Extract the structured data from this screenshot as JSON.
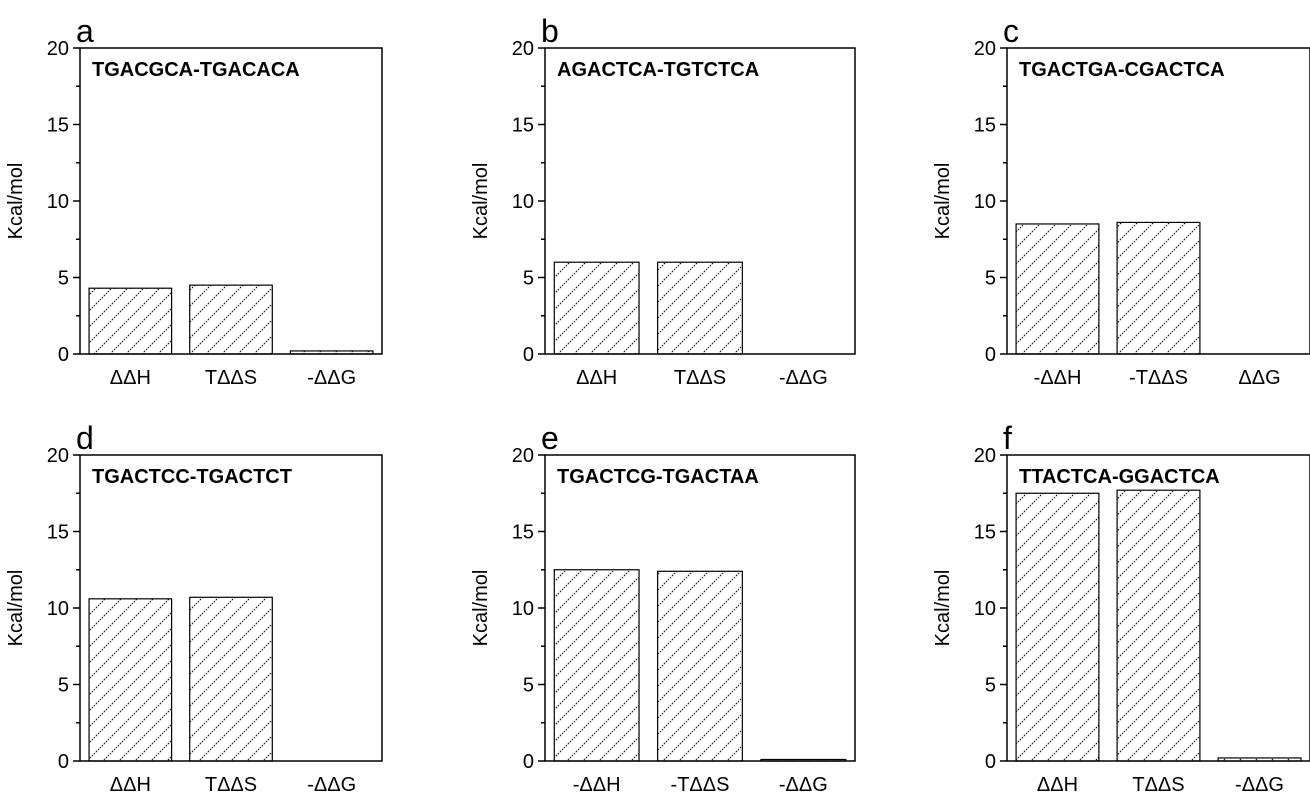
{
  "chart_data": [
    {
      "type": "bar",
      "panel": "a",
      "title": "TGACGCA-TGACACA",
      "ylabel": "Kcal/mol",
      "ylim": [
        0,
        20
      ],
      "yticks": [
        0,
        5,
        10,
        15,
        20
      ],
      "categories": [
        "ΔΔH",
        "TΔΔS",
        "-ΔΔG"
      ],
      "values": [
        4.3,
        4.5,
        0.2
      ]
    },
    {
      "type": "bar",
      "panel": "b",
      "title": "AGACTCA-TGTCTCA",
      "ylabel": "Kcal/mol",
      "ylim": [
        0,
        20
      ],
      "yticks": [
        0,
        5,
        10,
        15,
        20
      ],
      "categories": [
        "ΔΔH",
        "TΔΔS",
        "-ΔΔG"
      ],
      "values": [
        6.0,
        6.0,
        0.0
      ]
    },
    {
      "type": "bar",
      "panel": "c",
      "title": "TGACTGA-CGACTCA",
      "ylabel": "Kcal/mol",
      "ylim": [
        0,
        20
      ],
      "yticks": [
        0,
        5,
        10,
        15,
        20
      ],
      "categories": [
        "-ΔΔH",
        "-TΔΔS",
        "ΔΔG"
      ],
      "values": [
        8.5,
        8.6,
        0.0
      ]
    },
    {
      "type": "bar",
      "panel": "d",
      "title": "TGACTCC-TGACTCT",
      "ylabel": "Kcal/mol",
      "ylim": [
        0,
        20
      ],
      "yticks": [
        0,
        5,
        10,
        15,
        20
      ],
      "categories": [
        "ΔΔH",
        "TΔΔS",
        "-ΔΔG"
      ],
      "values": [
        10.6,
        10.7,
        0.0
      ]
    },
    {
      "type": "bar",
      "panel": "e",
      "title": "TGACTCG-TGACTAA",
      "ylabel": "Kcal/mol",
      "ylim": [
        0,
        20
      ],
      "yticks": [
        0,
        5,
        10,
        15,
        20
      ],
      "categories": [
        "-ΔΔH",
        "-TΔΔS",
        "-ΔΔG"
      ],
      "values": [
        12.5,
        12.4,
        0.1
      ]
    },
    {
      "type": "bar",
      "panel": "f",
      "title": "TTACTCA-GGACTCA",
      "ylabel": "Kcal/mol",
      "ylim": [
        0,
        20
      ],
      "yticks": [
        0,
        5,
        10,
        15,
        20
      ],
      "categories": [
        "ΔΔH",
        "TΔΔS",
        "-ΔΔG"
      ],
      "values": [
        17.5,
        17.7,
        0.2
      ]
    }
  ],
  "style": {
    "bar_fill": "#ffffff",
    "bar_hatch": "diagonal",
    "stroke_color": "#000000"
  }
}
